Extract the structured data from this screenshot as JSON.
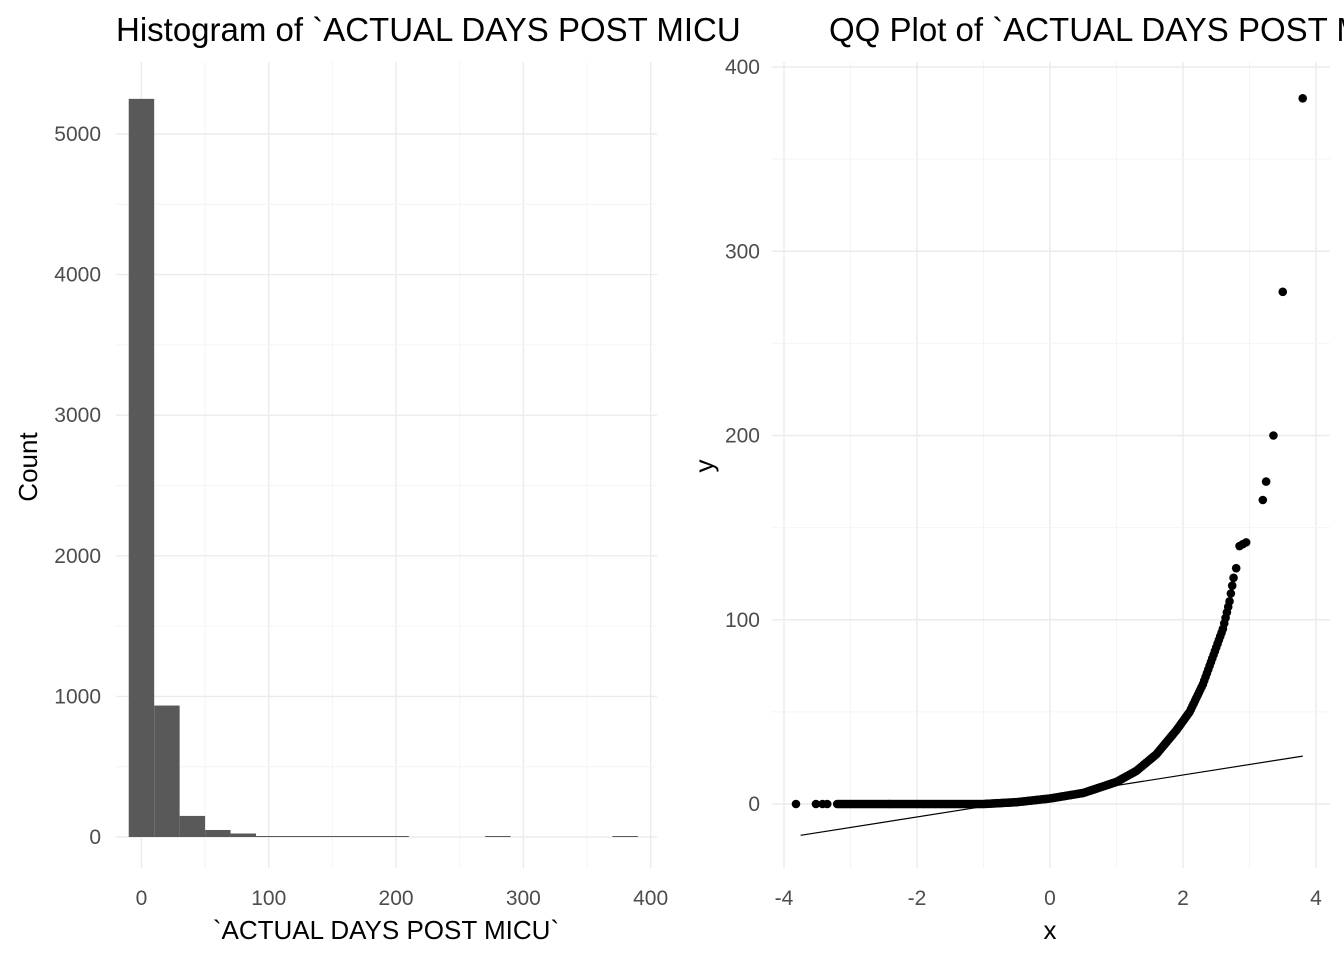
{
  "chart_data": [
    {
      "type": "bar",
      "title": "Histogram of `ACTUAL DAYS POST MICU",
      "xlabel": "`ACTUAL DAYS POST MICU`",
      "ylabel": "Count",
      "xlim": [
        -20,
        405
      ],
      "ylim": [
        0,
        5500
      ],
      "x_ticks": [
        0,
        100,
        200,
        300,
        400
      ],
      "y_ticks": [
        0,
        1000,
        2000,
        3000,
        4000,
        5000
      ],
      "bin_width": 20,
      "categories": [
        "-10–10",
        "10–30",
        "30–50",
        "50–70",
        "70–90",
        "90–110",
        "110–130",
        "130–150",
        "150–170",
        "170–190",
        "190–210",
        "270–290",
        "370–390"
      ],
      "bins": [
        {
          "x0": -10,
          "x1": 10,
          "count": 5250
        },
        {
          "x0": 10,
          "x1": 30,
          "count": 935
        },
        {
          "x0": 30,
          "x1": 50,
          "count": 150
        },
        {
          "x0": 50,
          "x1": 70,
          "count": 50
        },
        {
          "x0": 70,
          "x1": 90,
          "count": 25
        },
        {
          "x0": 90,
          "x1": 110,
          "count": 6
        },
        {
          "x0": 110,
          "x1": 130,
          "count": 4
        },
        {
          "x0": 130,
          "x1": 150,
          "count": 4
        },
        {
          "x0": 150,
          "x1": 170,
          "count": 3
        },
        {
          "x0": 170,
          "x1": 190,
          "count": 2
        },
        {
          "x0": 190,
          "x1": 210,
          "count": 2
        },
        {
          "x0": 270,
          "x1": 290,
          "count": 1
        },
        {
          "x0": 370,
          "x1": 390,
          "count": 1
        }
      ],
      "color": "#595959",
      "grid": true
    },
    {
      "type": "scatter",
      "title": "QQ Plot of `ACTUAL DAYS POST MICU",
      "xlabel": "x",
      "ylabel": "y",
      "xlim": [
        -4,
        4.05
      ],
      "ylim": [
        -35,
        400
      ],
      "x_ticks": [
        -4,
        -2,
        0,
        2,
        4
      ],
      "y_ticks": [
        0,
        100,
        200,
        300,
        400
      ],
      "curve_knots": [
        [
          -3.2,
          0
        ],
        [
          -1.0,
          0
        ],
        [
          -0.5,
          1
        ],
        [
          0.0,
          3
        ],
        [
          0.5,
          6
        ],
        [
          1.0,
          12
        ],
        [
          1.3,
          18
        ],
        [
          1.6,
          27
        ],
        [
          1.9,
          40
        ],
        [
          2.1,
          50
        ],
        [
          2.3,
          65
        ],
        [
          2.5,
          85
        ],
        [
          2.6,
          95
        ],
        [
          2.7,
          110
        ],
        [
          2.78,
          127
        ]
      ],
      "points": [
        [
          -3.82,
          0
        ],
        [
          -3.52,
          0
        ],
        [
          -3.42,
          0
        ],
        [
          -3.35,
          0
        ],
        [
          2.8,
          128
        ],
        [
          2.85,
          140
        ],
        [
          2.9,
          141
        ],
        [
          2.95,
          142
        ],
        [
          3.2,
          165
        ],
        [
          3.25,
          175
        ],
        [
          3.36,
          200
        ],
        [
          3.5,
          278
        ],
        [
          3.8,
          383
        ]
      ],
      "reference_line": [
        [
          -3.75,
          -17
        ],
        [
          3.8,
          26
        ]
      ],
      "color": "#000000",
      "grid": true
    }
  ]
}
